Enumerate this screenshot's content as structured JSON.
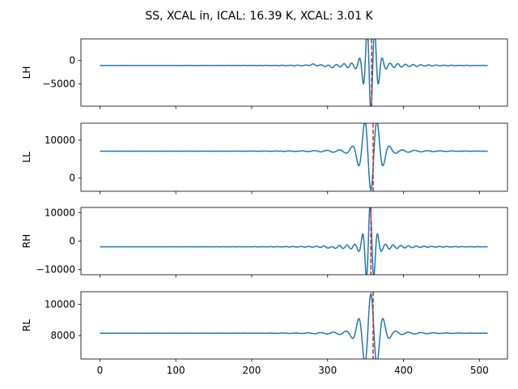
{
  "chart_data": {
    "type": "line",
    "title": "SS, XCAL in, ICAL: 16.39 K, XCAL: 3.01 K",
    "xlim": [
      -25,
      537
    ],
    "xticks": [
      0,
      100,
      200,
      300,
      400,
      500
    ],
    "xlabel": "",
    "line_color": "#1f77b4",
    "marker_color": "#d62728",
    "panels": [
      {
        "ylabel": "LH",
        "ylim": [
          -9700,
          4600
        ],
        "yticks": [
          0,
          -5000
        ],
        "ytick_labels": [
          "0",
          "−5000"
        ],
        "baseline": -1050,
        "dips": [
          {
            "x": 280,
            "amp": 200,
            "w": 4
          },
          {
            "x": 305,
            "amp": -250,
            "w": 4
          }
        ],
        "wavelet": {
          "center": 357,
          "amp": -8600,
          "freq": 0.62,
          "sigma": 7
        },
        "marker_x": 358
      },
      {
        "ylabel": "LL",
        "ylim": [
          -3500,
          14500
        ],
        "yticks": [
          10000,
          0
        ],
        "ytick_labels": [
          "10000",
          "0"
        ],
        "baseline": 7100,
        "wavelet": {
          "center": 357,
          "amp": -9200,
          "freq": 0.38,
          "sigma": 11
        },
        "marker_x": 360
      },
      {
        "ylabel": "RH",
        "ylim": [
          -11800,
          11800
        ],
        "yticks": [
          10000,
          0,
          -10000
        ],
        "ytick_labels": [
          "10000",
          "0",
          "−10000"
        ],
        "baseline": -2000,
        "dips": [
          {
            "x": 305,
            "amp": -300,
            "w": 4
          }
        ],
        "wavelet": {
          "center": 356,
          "amp": 13000,
          "freq": 0.62,
          "sigma": 6
        },
        "marker_x": 357
      },
      {
        "ylabel": "RL",
        "ylim": [
          6500,
          10800
        ],
        "yticks": [
          10000,
          8000
        ],
        "ytick_labels": [
          "10000",
          "8000"
        ],
        "baseline": 8150,
        "wavelet": {
          "center": 357,
          "amp": 2250,
          "freq": 0.38,
          "sigma": 11
        },
        "marker_x": 360
      }
    ],
    "x_range": [
      0,
      511
    ]
  }
}
